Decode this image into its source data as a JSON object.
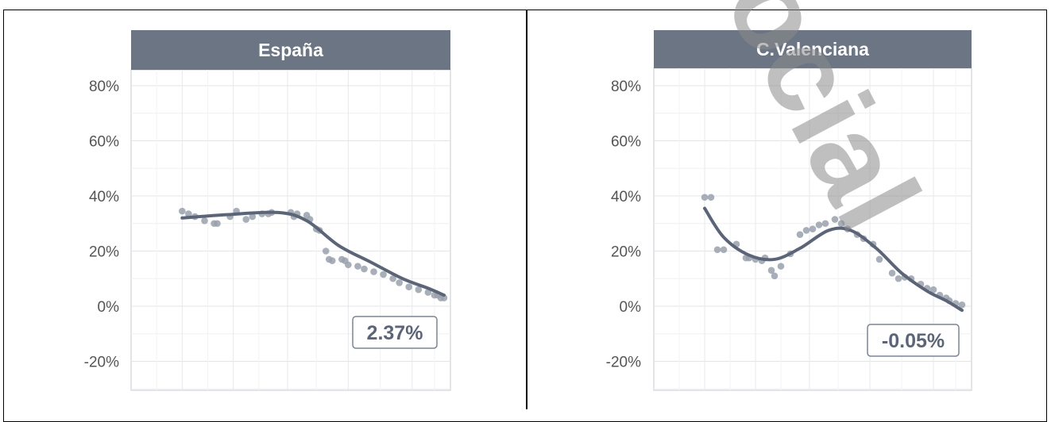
{
  "chart_data": [
    {
      "type": "scatter",
      "title": "España",
      "ylim": [
        -30,
        90
      ],
      "xlim": [
        0,
        1
      ],
      "yticks": [
        80,
        60,
        40,
        20,
        0,
        -20
      ],
      "tick_suffix": "%",
      "grid": true,
      "points": {
        "x": [
          0.16,
          0.18,
          0.2,
          0.23,
          0.26,
          0.27,
          0.31,
          0.33,
          0.36,
          0.38,
          0.41,
          0.43,
          0.44,
          0.5,
          0.51,
          0.52,
          0.55,
          0.56,
          0.58,
          0.59,
          0.61,
          0.62,
          0.63,
          0.66,
          0.67,
          0.68,
          0.71,
          0.73,
          0.76,
          0.79,
          0.82,
          0.84,
          0.87,
          0.9,
          0.93,
          0.95,
          0.96,
          0.97,
          0.98
        ],
        "y": [
          34.5,
          33.5,
          32.5,
          31,
          30,
          30,
          32.5,
          34.5,
          31.5,
          32.5,
          33.5,
          33.5,
          34,
          34,
          32.5,
          33.5,
          33,
          31.5,
          28,
          27.5,
          20,
          17,
          16.5,
          17,
          16.5,
          15,
          14.5,
          13.5,
          12.5,
          11.5,
          10,
          8.5,
          7,
          6,
          5,
          4,
          4,
          3,
          3
        ]
      },
      "trend": {
        "x": [
          0.16,
          0.3,
          0.46,
          0.55,
          0.65,
          0.75,
          0.85,
          0.93,
          0.98
        ],
        "y": [
          32,
          33.2,
          34,
          31,
          22,
          16,
          10,
          6.5,
          4
        ]
      },
      "annotation": "2.37%"
    },
    {
      "type": "scatter",
      "title": "C.Valenciana",
      "ylim": [
        -30,
        90
      ],
      "xlim": [
        0,
        1
      ],
      "yticks": [
        80,
        60,
        40,
        20,
        0,
        -20
      ],
      "tick_suffix": "%",
      "grid": true,
      "points": {
        "x": [
          0.16,
          0.18,
          0.2,
          0.22,
          0.26,
          0.29,
          0.3,
          0.32,
          0.34,
          0.35,
          0.37,
          0.38,
          0.4,
          0.43,
          0.46,
          0.48,
          0.5,
          0.52,
          0.54,
          0.57,
          0.59,
          0.61,
          0.64,
          0.66,
          0.69,
          0.71,
          0.75,
          0.77,
          0.79,
          0.81,
          0.84,
          0.86,
          0.88,
          0.9,
          0.92,
          0.93,
          0.95,
          0.97
        ],
        "y": [
          39.5,
          39.5,
          20.5,
          20.5,
          22.5,
          17.5,
          17.5,
          17,
          16.5,
          17.5,
          13,
          11,
          14.5,
          19,
          26,
          27.5,
          28,
          29.5,
          30,
          31.5,
          30,
          28,
          26,
          24.5,
          22.5,
          17,
          12,
          10,
          10.5,
          10,
          8,
          6.5,
          6,
          4,
          3,
          2,
          1,
          0.5
        ]
      },
      "trend": {
        "x": [
          0.16,
          0.22,
          0.3,
          0.38,
          0.46,
          0.55,
          0.62,
          0.7,
          0.78,
          0.86,
          0.92,
          0.97
        ],
        "y": [
          35.5,
          25,
          18.5,
          17,
          21,
          27.5,
          27.5,
          21,
          12,
          5.5,
          2,
          -1.5
        ]
      },
      "annotation": "-0.05%"
    }
  ],
  "watermark": {
    "text": "ocial"
  }
}
